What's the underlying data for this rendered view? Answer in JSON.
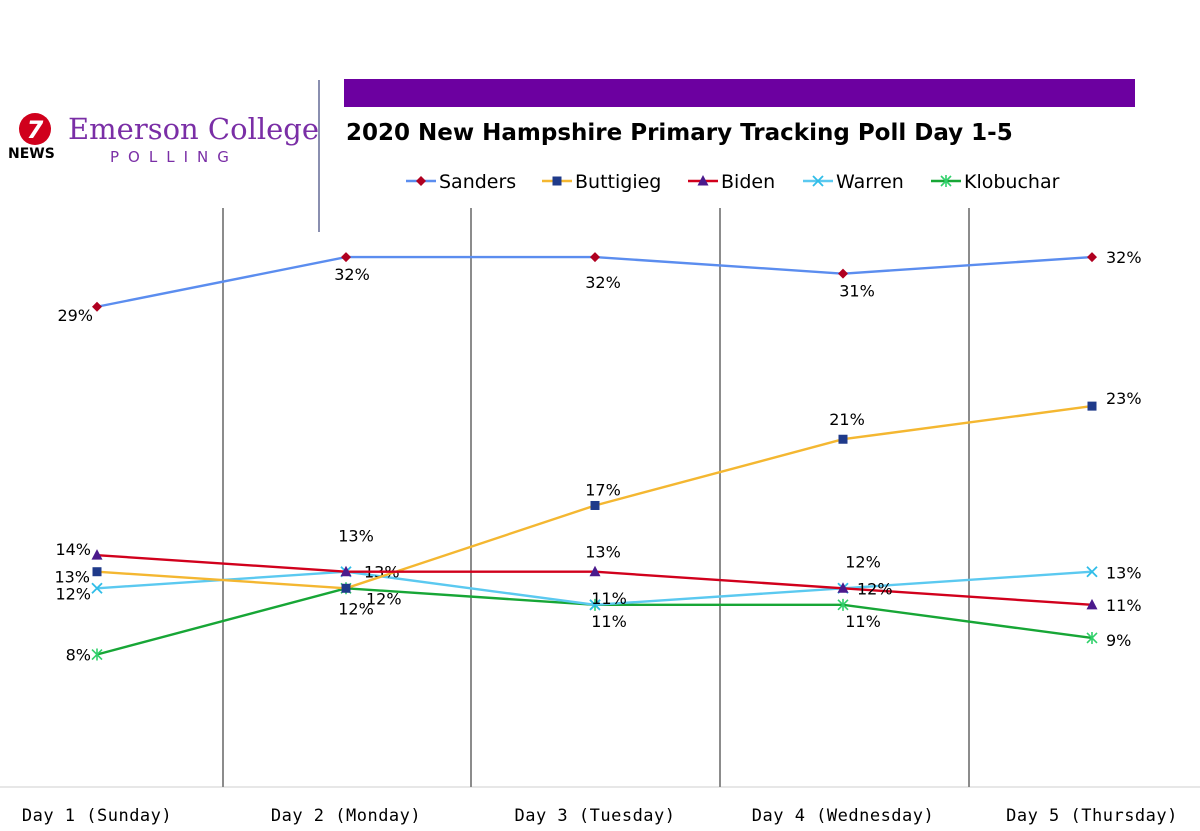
{
  "branding": {
    "logo_number": "7",
    "logo_news": "NEWS",
    "college_name": "Emerson College",
    "polling_label": "POLLING",
    "banner_color": "#6c00a0",
    "brand_color": "#7a2ea6"
  },
  "chart_data": {
    "type": "line",
    "title": "2020 New Hampshire Primary Tracking Poll Day 1-5",
    "categories": [
      "Day 1 (Sunday)",
      "Day 2 (Monday)",
      "Day 3 (Tuesday)",
      "Day 4 (Wednesday)",
      "Day 5 (Thursday)"
    ],
    "ylim": [
      0,
      35
    ],
    "grid": "vertical",
    "legend_position": "top",
    "series": [
      {
        "name": "Sanders",
        "values": [
          29,
          32,
          32,
          31,
          32
        ],
        "labels": [
          "29%",
          "32%",
          "32%",
          "31%",
          "32%"
        ],
        "color": "#5b8def",
        "marker": "diamond",
        "marker_color": "#b00020"
      },
      {
        "name": "Buttigieg",
        "values": [
          13,
          12,
          17,
          21,
          23
        ],
        "labels": [
          "13%",
          "12%",
          "17%",
          "21%",
          "23%"
        ],
        "color": "#f4b731",
        "marker": "square",
        "marker_color": "#1f3a8a"
      },
      {
        "name": "Biden",
        "values": [
          14,
          13,
          13,
          12,
          11
        ],
        "labels": [
          "14%",
          "13%",
          "13%",
          "12%",
          "11%"
        ],
        "color": "#d1001c",
        "marker": "triangle",
        "marker_color": "#4b1a8c"
      },
      {
        "name": "Warren",
        "values": [
          12,
          13,
          11,
          12,
          13
        ],
        "labels": [
          "12%",
          "13%",
          "11%",
          "12%",
          "13%"
        ],
        "color": "#5bc9f0",
        "marker": "x",
        "marker_color": "#30bde8"
      },
      {
        "name": "Klobuchar",
        "values": [
          8,
          12,
          11,
          11,
          9
        ],
        "labels": [
          "8%",
          "12%",
          "11%",
          "11%",
          "9%"
        ],
        "color": "#17a636",
        "marker": "star",
        "marker_color": "#30d06a"
      }
    ]
  }
}
